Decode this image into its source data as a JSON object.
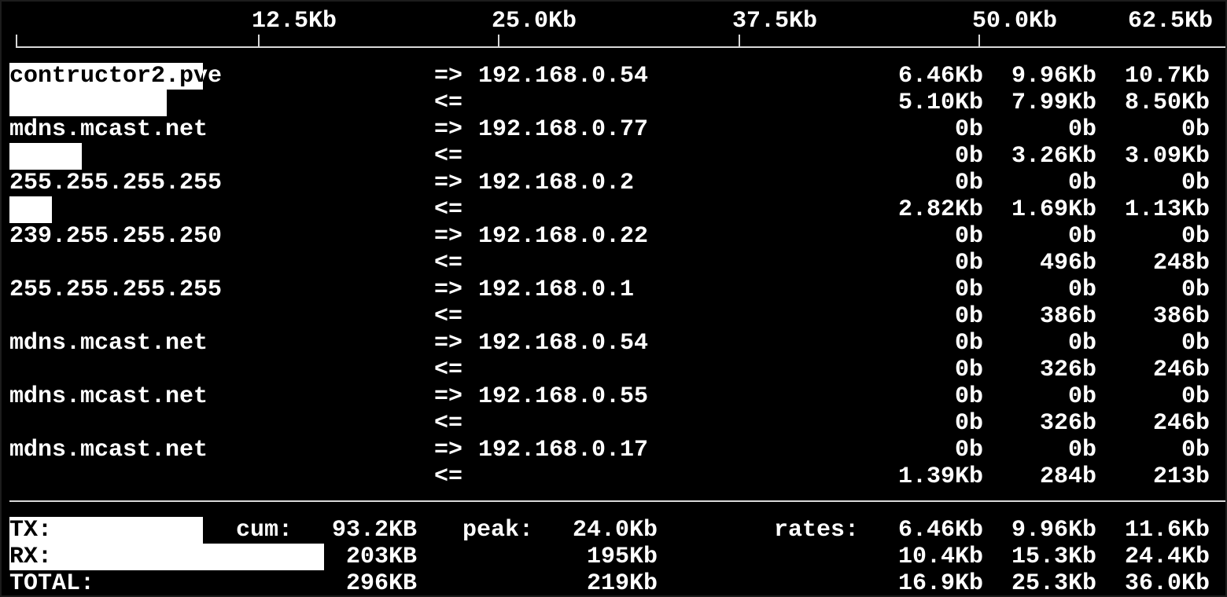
{
  "scale": {
    "ticks": [
      "12.5Kb",
      "25.0Kb",
      "37.5Kb",
      "50.0Kb",
      "62.5Kb"
    ]
  },
  "flows": [
    {
      "host": "contructor2.pve",
      "peer": "192.168.0.54",
      "tx": [
        "6.46Kb",
        "9.96Kb",
        "10.7Kb"
      ],
      "rx": [
        "5.10Kb",
        "7.99Kb",
        "8.50Kb"
      ],
      "tx_bar_fraction": 0.16,
      "rx_bar_fraction": 0.13
    },
    {
      "host": "mdns.mcast.net",
      "peer": "192.168.0.77",
      "tx": [
        "0b",
        "0b",
        "0b"
      ],
      "rx": [
        "0b",
        "3.26Kb",
        "3.09Kb"
      ],
      "tx_bar_fraction": 0,
      "rx_bar_fraction": 0.06
    },
    {
      "host": "255.255.255.255",
      "peer": "192.168.0.2",
      "tx": [
        "0b",
        "0b",
        "0b"
      ],
      "rx": [
        "2.82Kb",
        "1.69Kb",
        "1.13Kb"
      ],
      "tx_bar_fraction": 0,
      "rx_bar_fraction": 0.035
    },
    {
      "host": "239.255.255.250",
      "peer": "192.168.0.22",
      "tx": [
        "0b",
        "0b",
        "0b"
      ],
      "rx": [
        "0b",
        "496b",
        "248b"
      ],
      "tx_bar_fraction": 0,
      "rx_bar_fraction": 0
    },
    {
      "host": "255.255.255.255",
      "peer": "192.168.0.1",
      "tx": [
        "0b",
        "0b",
        "0b"
      ],
      "rx": [
        "0b",
        "386b",
        "386b"
      ],
      "tx_bar_fraction": 0,
      "rx_bar_fraction": 0
    },
    {
      "host": "mdns.mcast.net",
      "peer": "192.168.0.54",
      "tx": [
        "0b",
        "0b",
        "0b"
      ],
      "rx": [
        "0b",
        "326b",
        "246b"
      ],
      "tx_bar_fraction": 0,
      "rx_bar_fraction": 0
    },
    {
      "host": "mdns.mcast.net",
      "peer": "192.168.0.55",
      "tx": [
        "0b",
        "0b",
        "0b"
      ],
      "rx": [
        "0b",
        "326b",
        "246b"
      ],
      "tx_bar_fraction": 0,
      "rx_bar_fraction": 0
    },
    {
      "host": "mdns.mcast.net",
      "peer": "192.168.0.17",
      "tx": [
        "0b",
        "0b",
        "0b"
      ],
      "rx": [
        "1.39Kb",
        "284b",
        "213b"
      ],
      "tx_bar_fraction": 0,
      "rx_bar_fraction": 0
    }
  ],
  "arrows": {
    "tx": "=>",
    "rx": "<="
  },
  "totals": {
    "labels": {
      "cum": "cum:",
      "peak": "peak:",
      "rates": "rates:"
    },
    "rows": [
      {
        "label": "TX:",
        "cum": "93.2KB",
        "peak": "24.0Kb",
        "rates": [
          "6.46Kb",
          "9.96Kb",
          "11.6Kb"
        ],
        "bar_fraction": 0.16
      },
      {
        "label": "RX:",
        "cum": "203KB",
        "peak": "195Kb",
        "rates": [
          "10.4Kb",
          "15.3Kb",
          "24.4Kb"
        ],
        "bar_fraction": 0.26
      },
      {
        "label": "TOTAL:",
        "cum": "296KB",
        "peak": "219Kb",
        "rates": [
          "16.9Kb",
          "25.3Kb",
          "36.0Kb"
        ]
      }
    ]
  }
}
